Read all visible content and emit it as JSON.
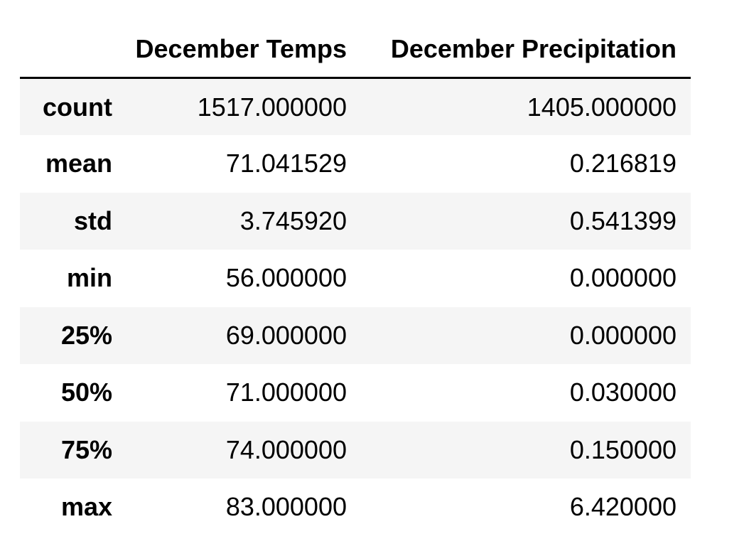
{
  "table": {
    "index_header": "",
    "columns": [
      "December Temps",
      "December Precipitation"
    ],
    "rows": [
      {
        "label": "count",
        "values": [
          "1517.000000",
          "1405.000000"
        ]
      },
      {
        "label": "mean",
        "values": [
          "71.041529",
          "0.216819"
        ]
      },
      {
        "label": "std",
        "values": [
          "3.745920",
          "0.541399"
        ]
      },
      {
        "label": "min",
        "values": [
          "56.000000",
          "0.000000"
        ]
      },
      {
        "label": "25%",
        "values": [
          "69.000000",
          "0.000000"
        ]
      },
      {
        "label": "50%",
        "values": [
          "71.000000",
          "0.030000"
        ]
      },
      {
        "label": "75%",
        "values": [
          "74.000000",
          "0.150000"
        ]
      },
      {
        "label": "max",
        "values": [
          "83.000000",
          "6.420000"
        ]
      }
    ]
  },
  "colors": {
    "stripe": "#f5f5f5",
    "text": "#000000",
    "rule": "#000000"
  }
}
